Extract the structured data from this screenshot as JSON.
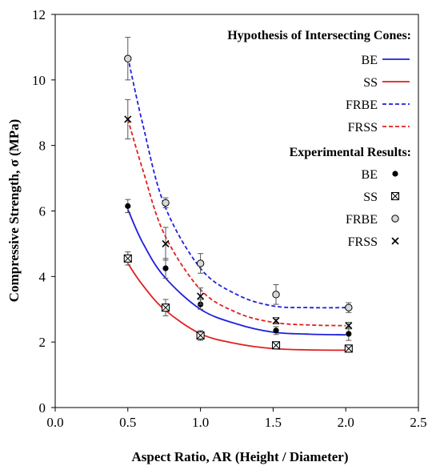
{
  "chart_data": {
    "type": "scatter",
    "xlabel": "Aspect Ratio, AR (Height / Diameter)",
    "ylabel": "Compressive Strength, σ (MPa)",
    "xlim": [
      0,
      2.5
    ],
    "ylim": [
      0,
      12
    ],
    "xticks": [
      "0.0",
      "0.5",
      "1.0",
      "1.5",
      "2.0",
      "2.5"
    ],
    "yticks": [
      "0",
      "2",
      "4",
      "6",
      "8",
      "10",
      "12"
    ],
    "grid": false,
    "legend_position": "top-right",
    "legend_groups": [
      {
        "heading": "Hypothesis of Intersecting Cones:",
        "kind": "lines"
      },
      {
        "heading": "Experimental Results:",
        "kind": "markers"
      }
    ],
    "model_curves": [
      {
        "name": "BE",
        "color": "#1f1fe0",
        "dash": "solid",
        "x": [
          0.5,
          0.6,
          0.75,
          1.0,
          1.25,
          1.5,
          1.75,
          2.0
        ],
        "y": [
          6.05,
          5.05,
          4.0,
          3.0,
          2.55,
          2.3,
          2.24,
          2.22
        ]
      },
      {
        "name": "SS",
        "color": "#e01f1f",
        "dash": "solid",
        "x": [
          0.5,
          0.6,
          0.75,
          1.0,
          1.25,
          1.5,
          1.75,
          2.0
        ],
        "y": [
          4.4,
          3.75,
          3.0,
          2.25,
          1.95,
          1.8,
          1.76,
          1.75
        ]
      },
      {
        "name": "FRBE",
        "color": "#1f1fe0",
        "dash": "dashed",
        "x": [
          0.5,
          0.6,
          0.75,
          1.0,
          1.25,
          1.5,
          1.75,
          2.0
        ],
        "y": [
          10.7,
          8.7,
          6.2,
          4.25,
          3.45,
          3.1,
          3.05,
          3.05
        ]
      },
      {
        "name": "FRSS",
        "color": "#e01f1f",
        "dash": "dashed",
        "x": [
          0.5,
          0.6,
          0.75,
          1.0,
          1.25,
          1.5,
          1.75,
          2.0
        ],
        "y": [
          8.8,
          7.3,
          5.3,
          3.6,
          2.9,
          2.6,
          2.52,
          2.5
        ]
      }
    ],
    "experimental": [
      {
        "name": "BE",
        "marker": "filled-circle",
        "x": [
          0.5,
          0.76,
          1.0,
          1.52,
          2.02
        ],
        "y": [
          6.15,
          4.25,
          3.15,
          2.35,
          2.25
        ],
        "err": [
          0.2,
          0.3,
          0.15,
          0.12,
          0.2
        ]
      },
      {
        "name": "SS",
        "marker": "boxed-x",
        "x": [
          0.5,
          0.76,
          1.0,
          1.52,
          2.02
        ],
        "y": [
          4.55,
          3.05,
          2.2,
          1.9,
          1.8
        ],
        "err": [
          0.2,
          0.25,
          0.15,
          0.1,
          0.1
        ]
      },
      {
        "name": "FRBE",
        "marker": "open-circle",
        "x": [
          0.5,
          0.76,
          1.0,
          1.52,
          2.02
        ],
        "y": [
          10.65,
          6.25,
          4.4,
          3.45,
          3.05
        ],
        "err": [
          0.65,
          0.15,
          0.3,
          0.3,
          0.15
        ]
      },
      {
        "name": "FRSS",
        "marker": "x",
        "x": [
          0.5,
          0.76,
          1.0,
          1.52,
          2.02
        ],
        "y": [
          8.8,
          5.0,
          3.4,
          2.65,
          2.5
        ],
        "err": [
          0.6,
          0.5,
          0.25,
          0.1,
          0.1
        ]
      }
    ]
  }
}
